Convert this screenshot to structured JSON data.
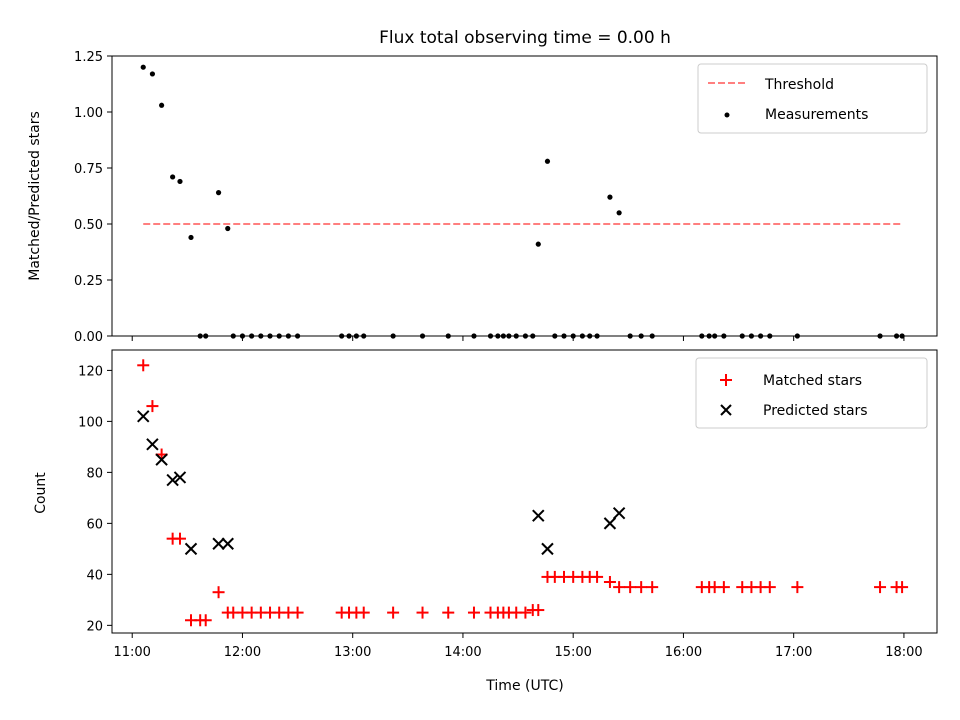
{
  "title": "Flux total observing time = 0.00 h",
  "chart_data": [
    {
      "type": "scatter",
      "ylabel": "Matched/Predicted stars",
      "xlabel": "",
      "x_axis_type": "time",
      "xlim": [
        "10:49",
        "18:18"
      ],
      "ylim": [
        0,
        1.25
      ],
      "y_ticks": [
        "0.00",
        "0.25",
        "0.50",
        "0.75",
        "1.00",
        "1.25"
      ],
      "legend_position": "top-right",
      "threshold": {
        "name": "Threshold",
        "color": "#ff7f7f",
        "y": 0.5,
        "x_start": "11:06",
        "x_end": "17:59"
      },
      "series": [
        {
          "name": "Measurements",
          "color": "#000000",
          "marker": "dot",
          "points": [
            [
              "11:06",
              1.2
            ],
            [
              "11:11",
              1.17
            ],
            [
              "11:16",
              1.03
            ],
            [
              "11:22",
              0.71
            ],
            [
              "11:26",
              0.69
            ],
            [
              "11:32",
              0.44
            ],
            [
              "11:37",
              0.0
            ],
            [
              "11:40",
              0.0
            ],
            [
              "11:47",
              0.64
            ],
            [
              "11:52",
              0.48
            ],
            [
              "11:55",
              0.0
            ],
            [
              "12:00",
              0.0
            ],
            [
              "12:05",
              0.0
            ],
            [
              "12:10",
              0.0
            ],
            [
              "12:15",
              0.0
            ],
            [
              "12:20",
              0.0
            ],
            [
              "12:25",
              0.0
            ],
            [
              "12:30",
              0.0
            ],
            [
              "12:54",
              0.0
            ],
            [
              "12:58",
              0.0
            ],
            [
              "13:02",
              0.0
            ],
            [
              "13:06",
              0.0
            ],
            [
              "13:22",
              0.0
            ],
            [
              "13:38",
              0.0
            ],
            [
              "13:52",
              0.0
            ],
            [
              "14:06",
              0.0
            ],
            [
              "14:15",
              0.0
            ],
            [
              "14:19",
              0.0
            ],
            [
              "14:22",
              0.0
            ],
            [
              "14:25",
              0.0
            ],
            [
              "14:29",
              0.0
            ],
            [
              "14:34",
              0.0
            ],
            [
              "14:38",
              0.0
            ],
            [
              "14:41",
              0.41
            ],
            [
              "14:46",
              0.78
            ],
            [
              "14:50",
              0.0
            ],
            [
              "14:55",
              0.0
            ],
            [
              "15:00",
              0.0
            ],
            [
              "15:05",
              0.0
            ],
            [
              "15:09",
              0.0
            ],
            [
              "15:13",
              0.0
            ],
            [
              "15:20",
              0.62
            ],
            [
              "15:25",
              0.55
            ],
            [
              "15:31",
              0.0
            ],
            [
              "15:37",
              0.0
            ],
            [
              "15:43",
              0.0
            ],
            [
              "16:10",
              0.0
            ],
            [
              "16:14",
              0.0
            ],
            [
              "16:17",
              0.0
            ],
            [
              "16:22",
              0.0
            ],
            [
              "16:32",
              0.0
            ],
            [
              "16:37",
              0.0
            ],
            [
              "16:42",
              0.0
            ],
            [
              "16:47",
              0.0
            ],
            [
              "17:02",
              0.0
            ],
            [
              "17:47",
              0.0
            ],
            [
              "17:56",
              0.0
            ],
            [
              "17:59",
              0.0
            ]
          ]
        }
      ]
    },
    {
      "type": "scatter",
      "ylabel": "Count",
      "xlabel": "Time (UTC)",
      "x_axis_type": "time",
      "xlim": [
        "10:49",
        "18:18"
      ],
      "ylim": [
        17,
        128
      ],
      "y_ticks": [
        "20",
        "40",
        "60",
        "80",
        "100",
        "120"
      ],
      "x_ticks": [
        "11:00",
        "12:00",
        "13:00",
        "14:00",
        "15:00",
        "16:00",
        "17:00",
        "18:00"
      ],
      "legend_position": "top-right",
      "series": [
        {
          "name": "Matched stars",
          "color": "#ff0000",
          "marker": "plus",
          "points": [
            [
              "11:06",
              122
            ],
            [
              "11:11",
              106
            ],
            [
              "11:16",
              87
            ],
            [
              "11:22",
              54
            ],
            [
              "11:26",
              54
            ],
            [
              "11:32",
              22
            ],
            [
              "11:37",
              22
            ],
            [
              "11:40",
              22
            ],
            [
              "11:47",
              33
            ],
            [
              "11:52",
              25
            ],
            [
              "11:55",
              25
            ],
            [
              "12:00",
              25
            ],
            [
              "12:05",
              25
            ],
            [
              "12:10",
              25
            ],
            [
              "12:15",
              25
            ],
            [
              "12:20",
              25
            ],
            [
              "12:25",
              25
            ],
            [
              "12:30",
              25
            ],
            [
              "12:54",
              25
            ],
            [
              "12:58",
              25
            ],
            [
              "13:02",
              25
            ],
            [
              "13:06",
              25
            ],
            [
              "13:22",
              25
            ],
            [
              "13:38",
              25
            ],
            [
              "13:52",
              25
            ],
            [
              "14:06",
              25
            ],
            [
              "14:15",
              25
            ],
            [
              "14:19",
              25
            ],
            [
              "14:22",
              25
            ],
            [
              "14:25",
              25
            ],
            [
              "14:29",
              25
            ],
            [
              "14:34",
              25
            ],
            [
              "14:38",
              26
            ],
            [
              "14:41",
              26
            ],
            [
              "14:46",
              39
            ],
            [
              "14:50",
              39
            ],
            [
              "14:55",
              39
            ],
            [
              "15:00",
              39
            ],
            [
              "15:05",
              39
            ],
            [
              "15:09",
              39
            ],
            [
              "15:13",
              39
            ],
            [
              "15:20",
              37
            ],
            [
              "15:25",
              35
            ],
            [
              "15:31",
              35
            ],
            [
              "15:37",
              35
            ],
            [
              "15:43",
              35
            ],
            [
              "16:10",
              35
            ],
            [
              "16:14",
              35
            ],
            [
              "16:17",
              35
            ],
            [
              "16:22",
              35
            ],
            [
              "16:32",
              35
            ],
            [
              "16:37",
              35
            ],
            [
              "16:42",
              35
            ],
            [
              "16:47",
              35
            ],
            [
              "17:02",
              35
            ],
            [
              "17:47",
              35
            ],
            [
              "17:56",
              35
            ],
            [
              "17:59",
              35
            ]
          ]
        },
        {
          "name": "Predicted stars",
          "color": "#000000",
          "marker": "x",
          "points": [
            [
              "11:06",
              102
            ],
            [
              "11:11",
              91
            ],
            [
              "11:16",
              85
            ],
            [
              "11:22",
              77
            ],
            [
              "11:26",
              78
            ],
            [
              "11:32",
              50
            ],
            [
              "11:47",
              52
            ],
            [
              "11:52",
              52
            ],
            [
              "14:41",
              63
            ],
            [
              "14:46",
              50
            ],
            [
              "15:20",
              60
            ],
            [
              "15:25",
              64
            ]
          ]
        }
      ]
    }
  ]
}
